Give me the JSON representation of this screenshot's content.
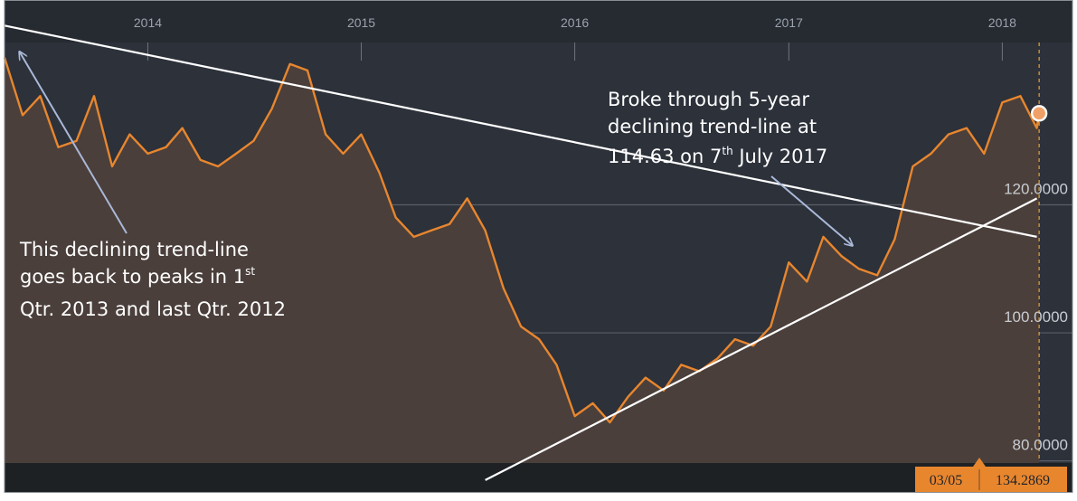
{
  "chart_data": {
    "type": "line",
    "title": "",
    "xlabel": "",
    "ylabel": "",
    "x_tick_labels": [
      "2014",
      "2015",
      "2016",
      "2017",
      "2018"
    ],
    "y_tick_labels": [
      "120.0000",
      "100.0000",
      "80.0000"
    ],
    "y_ticks": [
      120,
      100,
      80
    ],
    "ylim": [
      75,
      152
    ],
    "xlim": [
      "2013-05-01",
      "2018-05-01"
    ],
    "grid": true,
    "legend": "none",
    "series": [
      {
        "color": "#e8862e",
        "points": [
          [
            "2013-05-01",
            143
          ],
          [
            "2013-06-01",
            134
          ],
          [
            "2013-07-01",
            137
          ],
          [
            "2013-08-01",
            129
          ],
          [
            "2013-09-01",
            130
          ],
          [
            "2013-10-01",
            137
          ],
          [
            "2013-11-01",
            126
          ],
          [
            "2013-12-01",
            131
          ],
          [
            "2014-01-01",
            128
          ],
          [
            "2014-02-01",
            129
          ],
          [
            "2014-03-01",
            132
          ],
          [
            "2014-04-01",
            127
          ],
          [
            "2014-05-01",
            126
          ],
          [
            "2014-06-01",
            128
          ],
          [
            "2014-07-01",
            130
          ],
          [
            "2014-08-01",
            135
          ],
          [
            "2014-09-01",
            142
          ],
          [
            "2014-10-01",
            141
          ],
          [
            "2014-11-01",
            131
          ],
          [
            "2014-12-01",
            128
          ],
          [
            "2015-01-01",
            131
          ],
          [
            "2015-02-01",
            125
          ],
          [
            "2015-03-01",
            118
          ],
          [
            "2015-04-01",
            115
          ],
          [
            "2015-05-01",
            116
          ],
          [
            "2015-06-01",
            117
          ],
          [
            "2015-07-01",
            121
          ],
          [
            "2015-08-01",
            116
          ],
          [
            "2015-09-01",
            107
          ],
          [
            "2015-10-01",
            101
          ],
          [
            "2015-11-01",
            99
          ],
          [
            "2015-12-01",
            95
          ],
          [
            "2016-01-01",
            87
          ],
          [
            "2016-02-01",
            89
          ],
          [
            "2016-03-01",
            86
          ],
          [
            "2016-04-01",
            90
          ],
          [
            "2016-05-01",
            93
          ],
          [
            "2016-06-01",
            91
          ],
          [
            "2016-07-01",
            95
          ],
          [
            "2016-08-01",
            94
          ],
          [
            "2016-09-01",
            96
          ],
          [
            "2016-10-01",
            99
          ],
          [
            "2016-11-01",
            98
          ],
          [
            "2016-12-01",
            101
          ],
          [
            "2017-01-01",
            111
          ],
          [
            "2017-02-01",
            108
          ],
          [
            "2017-03-01",
            115
          ],
          [
            "2017-04-01",
            112
          ],
          [
            "2017-05-01",
            110
          ],
          [
            "2017-06-01",
            109
          ],
          [
            "2017-07-01",
            114.63
          ],
          [
            "2017-08-01",
            126
          ],
          [
            "2017-09-01",
            128
          ],
          [
            "2017-10-01",
            131
          ],
          [
            "2017-11-01",
            132
          ],
          [
            "2017-12-01",
            128
          ],
          [
            "2018-01-01",
            136
          ],
          [
            "2018-02-01",
            137
          ],
          [
            "2018-03-01",
            132
          ],
          [
            "2018-03-05",
            134.29
          ]
        ]
      }
    ],
    "trendlines": [
      {
        "from": [
          "2013-05-01",
          148
        ],
        "to": [
          "2018-03-01",
          115
        ]
      },
      {
        "from": [
          "2015-08-01",
          77
        ],
        "to": [
          "2018-03-01",
          121
        ]
      }
    ],
    "annotations": {
      "left_lines": [
        "This declining trend-line",
        "goes back to peaks in 1",
        "Qtr. 2013 and last Qtr. 2012"
      ],
      "left_sup": "st",
      "right_lines": [
        "Broke through 5-year",
        "declining trend-line at",
        "114.63 on 7",
        " July 2017"
      ],
      "right_sup": "th"
    },
    "readout": {
      "date": "03/05",
      "value": "134.2869"
    },
    "colors": {
      "background": "#2c313a",
      "header": "#262a31",
      "area_fill": "#4a3f3b",
      "line": "#e8862e",
      "trendline": "#ffffff",
      "arrow": "#aab8d8",
      "grid": "#5a5e66",
      "cursor": "#e8a33a",
      "readout_bg": "#e8862e"
    }
  }
}
